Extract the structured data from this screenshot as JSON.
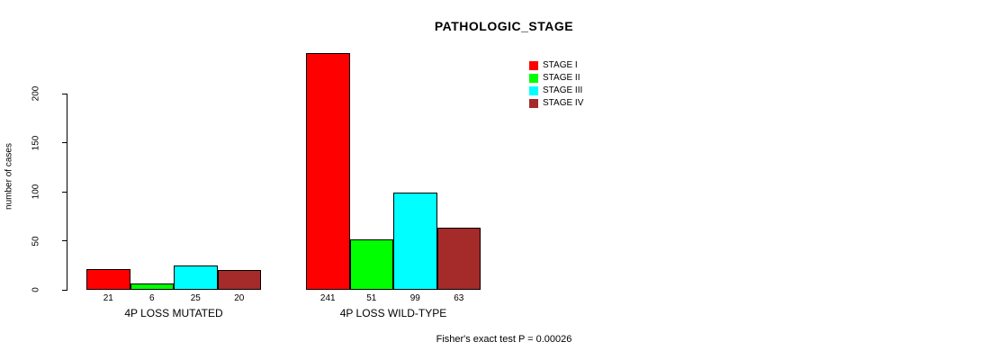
{
  "title": "PATHOLOGIC_STAGE",
  "chart_data": {
    "type": "bar",
    "title": "PATHOLOGIC_STAGE",
    "xlabel": "",
    "ylabel": "number of cases",
    "ylim": [
      0,
      200
    ],
    "yticks": [
      0,
      50,
      100,
      150,
      200
    ],
    "grid": false,
    "legend_position": "top-right",
    "bar_value_labels_shown": true,
    "categories": [
      "4P LOSS MUTATED",
      "4P LOSS WILD-TYPE"
    ],
    "series": [
      {
        "name": "STAGE I",
        "color": "#ff0000",
        "values": [
          21,
          241
        ]
      },
      {
        "name": "STAGE II",
        "color": "#00ff00",
        "values": [
          6,
          51
        ]
      },
      {
        "name": "STAGE III",
        "color": "#00ffff",
        "values": [
          25,
          99
        ]
      },
      {
        "name": "STAGE IV",
        "color": "#a52a2a",
        "values": [
          20,
          63
        ]
      }
    ],
    "annotation": "Fisher's exact test P = 0.00026"
  },
  "colors": {
    "axis": "#000000",
    "text": "#000000",
    "background": "#ffffff"
  }
}
